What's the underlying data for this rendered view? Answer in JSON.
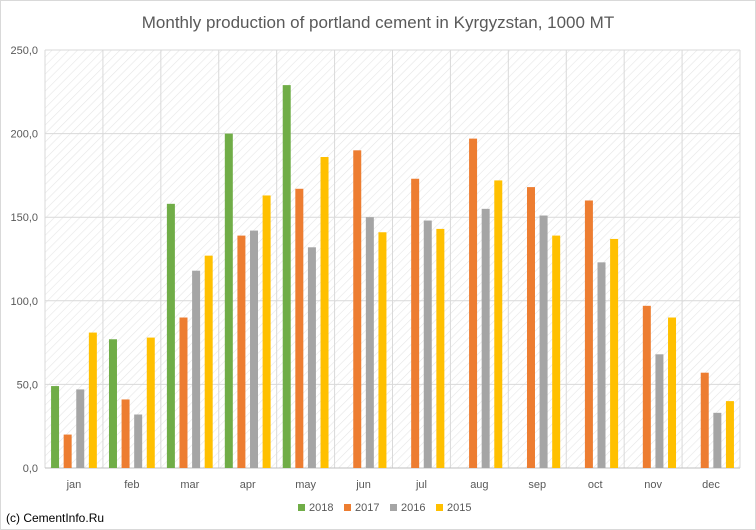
{
  "chart_data": {
    "type": "bar",
    "title": "Monthly production of portland cement in Kyrgyzstan, 1000 MT",
    "categories": [
      "jan",
      "feb",
      "mar",
      "apr",
      "may",
      "jun",
      "jul",
      "aug",
      "sep",
      "oct",
      "nov",
      "dec"
    ],
    "series": [
      {
        "name": "2018",
        "color": "#70ad47",
        "values": [
          49,
          77,
          158,
          200,
          229,
          null,
          null,
          null,
          null,
          null,
          null,
          null
        ]
      },
      {
        "name": "2017",
        "color": "#ed7d31",
        "values": [
          20,
          41,
          90,
          139,
          167,
          190,
          173,
          197,
          168,
          160,
          97,
          57
        ]
      },
      {
        "name": "2016",
        "color": "#a5a5a5",
        "values": [
          47,
          32,
          118,
          142,
          132,
          150,
          148,
          155,
          151,
          123,
          68,
          33
        ]
      },
      {
        "name": "2015",
        "color": "#ffc000",
        "values": [
          81,
          78,
          127,
          163,
          186,
          141,
          143,
          172,
          139,
          137,
          90,
          40
        ]
      }
    ],
    "ylim": [
      0,
      250
    ],
    "yticks": [
      "0,0",
      "50,0",
      "100,0",
      "150,0",
      "200,0",
      "250,0"
    ],
    "grid": true,
    "legend": "bottom",
    "gridline_color": "#d9d9d9",
    "hatch_color": "#e6e6e6"
  },
  "credit": "(c) CementInfo.Ru"
}
